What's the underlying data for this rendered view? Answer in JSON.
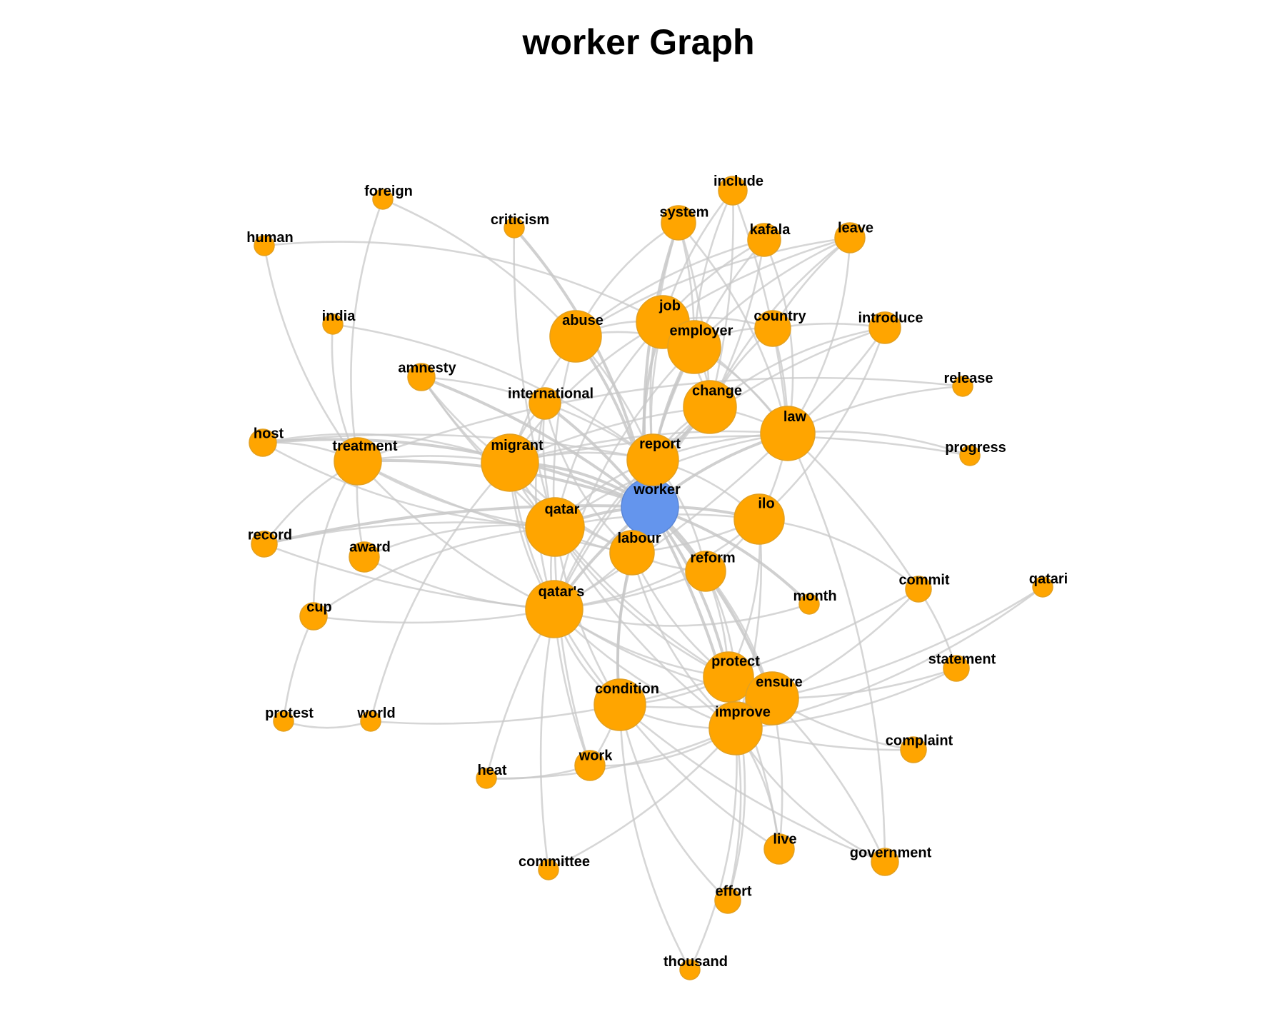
{
  "title": "worker Graph",
  "colors": {
    "center_node": "#6495ED",
    "node": "#FFA500",
    "node_stroke": "#E3A020",
    "edge": "#C8C8C8"
  },
  "graph": {
    "center": "worker",
    "nodes": [
      {
        "id": "worker",
        "label": "worker",
        "size": "large",
        "center": true
      },
      {
        "id": "foreign",
        "label": "foreign",
        "size": "small"
      },
      {
        "id": "criticism",
        "label": "criticism",
        "size": "small"
      },
      {
        "id": "human",
        "label": "human",
        "size": "small"
      },
      {
        "id": "include",
        "label": "include",
        "size": "small"
      },
      {
        "id": "system",
        "label": "system",
        "size": "small"
      },
      {
        "id": "kafala",
        "label": "kafala",
        "size": "small"
      },
      {
        "id": "leave",
        "label": "leave",
        "size": "small"
      },
      {
        "id": "india",
        "label": "india",
        "size": "small"
      },
      {
        "id": "abuse",
        "label": "abuse",
        "size": "large"
      },
      {
        "id": "job",
        "label": "job",
        "size": "large"
      },
      {
        "id": "employer",
        "label": "employer",
        "size": "large"
      },
      {
        "id": "country",
        "label": "country",
        "size": "small"
      },
      {
        "id": "introduce",
        "label": "introduce",
        "size": "small"
      },
      {
        "id": "amnesty",
        "label": "amnesty",
        "size": "small"
      },
      {
        "id": "international",
        "label": "international",
        "size": "small"
      },
      {
        "id": "change",
        "label": "change",
        "size": "large"
      },
      {
        "id": "release",
        "label": "release",
        "size": "small"
      },
      {
        "id": "law",
        "label": "law",
        "size": "large"
      },
      {
        "id": "host",
        "label": "host",
        "size": "small"
      },
      {
        "id": "treatment",
        "label": "treatment",
        "size": "large"
      },
      {
        "id": "migrant",
        "label": "migrant",
        "size": "large"
      },
      {
        "id": "report",
        "label": "report",
        "size": "large"
      },
      {
        "id": "progress",
        "label": "progress",
        "size": "small"
      },
      {
        "id": "qatar",
        "label": "qatar",
        "size": "large"
      },
      {
        "id": "ilo",
        "label": "ilo",
        "size": "large"
      },
      {
        "id": "record",
        "label": "record",
        "size": "small"
      },
      {
        "id": "award",
        "label": "award",
        "size": "small"
      },
      {
        "id": "labour",
        "label": "labour",
        "size": "large"
      },
      {
        "id": "reform",
        "label": "reform",
        "size": "large"
      },
      {
        "id": "month",
        "label": "month",
        "size": "small"
      },
      {
        "id": "commit",
        "label": "commit",
        "size": "small"
      },
      {
        "id": "qatari",
        "label": "qatari",
        "size": "small"
      },
      {
        "id": "cup",
        "label": "cup",
        "size": "small"
      },
      {
        "id": "qatars",
        "label": "qatar's",
        "size": "large"
      },
      {
        "id": "statement",
        "label": "statement",
        "size": "small"
      },
      {
        "id": "protect",
        "label": "protect",
        "size": "large"
      },
      {
        "id": "ensure",
        "label": "ensure",
        "size": "large"
      },
      {
        "id": "condition",
        "label": "condition",
        "size": "large"
      },
      {
        "id": "improve",
        "label": "improve",
        "size": "large"
      },
      {
        "id": "protest",
        "label": "protest",
        "size": "small"
      },
      {
        "id": "world",
        "label": "world",
        "size": "small"
      },
      {
        "id": "complaint",
        "label": "complaint",
        "size": "small"
      },
      {
        "id": "work",
        "label": "work",
        "size": "small"
      },
      {
        "id": "heat",
        "label": "heat",
        "size": "small"
      },
      {
        "id": "live",
        "label": "live",
        "size": "small"
      },
      {
        "id": "government",
        "label": "government",
        "size": "small"
      },
      {
        "id": "committee",
        "label": "committee",
        "size": "small"
      },
      {
        "id": "effort",
        "label": "effort",
        "size": "small"
      },
      {
        "id": "thousand",
        "label": "thousand",
        "size": "small"
      }
    ],
    "edges": [
      [
        "worker",
        "migrant"
      ],
      [
        "worker",
        "qatar"
      ],
      [
        "worker",
        "report"
      ],
      [
        "worker",
        "labour"
      ],
      [
        "worker",
        "ilo"
      ],
      [
        "worker",
        "treatment"
      ],
      [
        "worker",
        "qatars"
      ],
      [
        "worker",
        "law"
      ],
      [
        "worker",
        "change"
      ],
      [
        "worker",
        "abuse"
      ],
      [
        "worker",
        "reform"
      ],
      [
        "worker",
        "protect"
      ],
      [
        "worker",
        "improve"
      ],
      [
        "worker",
        "condition"
      ],
      [
        "worker",
        "employer"
      ],
      [
        "worker",
        "job"
      ],
      [
        "worker",
        "host"
      ],
      [
        "worker",
        "international"
      ],
      [
        "worker",
        "amnesty"
      ],
      [
        "worker",
        "ensure"
      ],
      [
        "worker",
        "month"
      ],
      [
        "worker",
        "record"
      ],
      [
        "worker",
        "criticism"
      ],
      [
        "worker",
        "system"
      ],
      [
        "foreign",
        "treatment"
      ],
      [
        "foreign",
        "abuse"
      ],
      [
        "human",
        "treatment"
      ],
      [
        "human",
        "job"
      ],
      [
        "criticism",
        "qatar"
      ],
      [
        "india",
        "treatment"
      ],
      [
        "india",
        "report"
      ],
      [
        "include",
        "job"
      ],
      [
        "include",
        "law"
      ],
      [
        "include",
        "employer"
      ],
      [
        "include",
        "change"
      ],
      [
        "system",
        "abuse"
      ],
      [
        "system",
        "employer"
      ],
      [
        "system",
        "change"
      ],
      [
        "system",
        "law"
      ],
      [
        "system",
        "report"
      ],
      [
        "kafala",
        "employer"
      ],
      [
        "kafala",
        "change"
      ],
      [
        "kafala",
        "law"
      ],
      [
        "kafala",
        "job"
      ],
      [
        "kafala",
        "abuse"
      ],
      [
        "leave",
        "employer"
      ],
      [
        "leave",
        "country"
      ],
      [
        "leave",
        "law"
      ],
      [
        "leave",
        "change"
      ],
      [
        "leave",
        "job"
      ],
      [
        "leave",
        "abuse"
      ],
      [
        "country",
        "job"
      ],
      [
        "country",
        "law"
      ],
      [
        "country",
        "employer"
      ],
      [
        "country",
        "introduce"
      ],
      [
        "country",
        "change"
      ],
      [
        "introduce",
        "law"
      ],
      [
        "introduce",
        "change"
      ],
      [
        "introduce",
        "ilo"
      ],
      [
        "introduce",
        "report"
      ],
      [
        "abuse",
        "migrant"
      ],
      [
        "abuse",
        "job"
      ],
      [
        "abuse",
        "report"
      ],
      [
        "abuse",
        "employer"
      ],
      [
        "abuse",
        "qatar"
      ],
      [
        "job",
        "employer"
      ],
      [
        "job",
        "change"
      ],
      [
        "job",
        "law"
      ],
      [
        "job",
        "report"
      ],
      [
        "job",
        "qatar"
      ],
      [
        "job",
        "migrant"
      ],
      [
        "employer",
        "change"
      ],
      [
        "employer",
        "law"
      ],
      [
        "employer",
        "report"
      ],
      [
        "employer",
        "labour"
      ],
      [
        "employer",
        "qatars"
      ],
      [
        "amnesty",
        "migrant"
      ],
      [
        "amnesty",
        "report"
      ],
      [
        "amnesty",
        "qatar"
      ],
      [
        "amnesty",
        "labour"
      ],
      [
        "international",
        "migrant"
      ],
      [
        "international",
        "qatar"
      ],
      [
        "international",
        "qatars"
      ],
      [
        "international",
        "labour"
      ],
      [
        "change",
        "law"
      ],
      [
        "change",
        "report"
      ],
      [
        "change",
        "migrant"
      ],
      [
        "change",
        "labour"
      ],
      [
        "change",
        "qatars"
      ],
      [
        "release",
        "law"
      ],
      [
        "release",
        "treatment"
      ],
      [
        "progress",
        "law"
      ],
      [
        "progress",
        "migrant"
      ],
      [
        "law",
        "report"
      ],
      [
        "law",
        "ilo"
      ],
      [
        "law",
        "migrant"
      ],
      [
        "law",
        "commit"
      ],
      [
        "law",
        "qatar"
      ],
      [
        "law",
        "government"
      ],
      [
        "law",
        "qatars"
      ],
      [
        "host",
        "treatment"
      ],
      [
        "host",
        "migrant"
      ],
      [
        "host",
        "qatar"
      ],
      [
        "host",
        "report"
      ],
      [
        "treatment",
        "migrant"
      ],
      [
        "treatment",
        "qatar"
      ],
      [
        "treatment",
        "record"
      ],
      [
        "treatment",
        "award"
      ],
      [
        "treatment",
        "cup"
      ],
      [
        "treatment",
        "qatars"
      ],
      [
        "treatment",
        "labour"
      ],
      [
        "migrant",
        "qatar"
      ],
      [
        "migrant",
        "qatars"
      ],
      [
        "migrant",
        "report"
      ],
      [
        "migrant",
        "labour"
      ],
      [
        "migrant",
        "condition"
      ],
      [
        "migrant",
        "protect"
      ],
      [
        "migrant",
        "world"
      ],
      [
        "report",
        "qatar"
      ],
      [
        "report",
        "qatars"
      ],
      [
        "report",
        "labour"
      ],
      [
        "report",
        "reform"
      ],
      [
        "report",
        "ilo"
      ],
      [
        "qatar",
        "qatars"
      ],
      [
        "qatar",
        "labour"
      ],
      [
        "qatar",
        "award"
      ],
      [
        "qatar",
        "record"
      ],
      [
        "qatar",
        "condition"
      ],
      [
        "qatar",
        "improve"
      ],
      [
        "qatar",
        "protect"
      ],
      [
        "qatar",
        "work"
      ],
      [
        "qatar",
        "cup"
      ],
      [
        "qatar",
        "ilo"
      ],
      [
        "ilo",
        "qatars"
      ],
      [
        "ilo",
        "reform"
      ],
      [
        "ilo",
        "protect"
      ],
      [
        "ilo",
        "commit"
      ],
      [
        "ilo",
        "improve"
      ],
      [
        "ilo",
        "labour"
      ],
      [
        "labour",
        "reform"
      ],
      [
        "labour",
        "condition"
      ],
      [
        "labour",
        "improve"
      ],
      [
        "labour",
        "qatars"
      ],
      [
        "labour",
        "protect"
      ],
      [
        "reform",
        "protect"
      ],
      [
        "reform",
        "improve"
      ],
      [
        "reform",
        "qatars"
      ],
      [
        "reform",
        "ensure"
      ],
      [
        "month",
        "qatars"
      ],
      [
        "commit",
        "ensure"
      ],
      [
        "commit",
        "statement"
      ],
      [
        "commit",
        "condition"
      ],
      [
        "qatari",
        "ensure"
      ],
      [
        "qatari",
        "improve"
      ],
      [
        "cup",
        "qatars"
      ],
      [
        "cup",
        "protest"
      ],
      [
        "qatars",
        "condition"
      ],
      [
        "qatars",
        "protect"
      ],
      [
        "qatars",
        "improve"
      ],
      [
        "qatars",
        "work"
      ],
      [
        "qatars",
        "heat"
      ],
      [
        "qatars",
        "committee"
      ],
      [
        "qatars",
        "record"
      ],
      [
        "qatars",
        "award"
      ],
      [
        "qatars",
        "ensure"
      ],
      [
        "statement",
        "ensure"
      ],
      [
        "statement",
        "improve"
      ],
      [
        "protect",
        "ensure"
      ],
      [
        "protect",
        "improve"
      ],
      [
        "protect",
        "condition"
      ],
      [
        "protect",
        "live"
      ],
      [
        "protect",
        "effort"
      ],
      [
        "ensure",
        "improve"
      ],
      [
        "ensure",
        "condition"
      ],
      [
        "ensure",
        "complaint"
      ],
      [
        "ensure",
        "government"
      ],
      [
        "ensure",
        "live"
      ],
      [
        "condition",
        "improve"
      ],
      [
        "condition",
        "work"
      ],
      [
        "condition",
        "live"
      ],
      [
        "condition",
        "thousand"
      ],
      [
        "condition",
        "effort"
      ],
      [
        "condition",
        "government"
      ],
      [
        "improve",
        "live"
      ],
      [
        "improve",
        "effort"
      ],
      [
        "improve",
        "government"
      ],
      [
        "improve",
        "complaint"
      ],
      [
        "improve",
        "work"
      ],
      [
        "improve",
        "thousand"
      ],
      [
        "protest",
        "world"
      ],
      [
        "world",
        "condition"
      ],
      [
        "work",
        "heat"
      ],
      [
        "committee",
        "improve"
      ],
      [
        "heat",
        "improve"
      ]
    ]
  }
}
